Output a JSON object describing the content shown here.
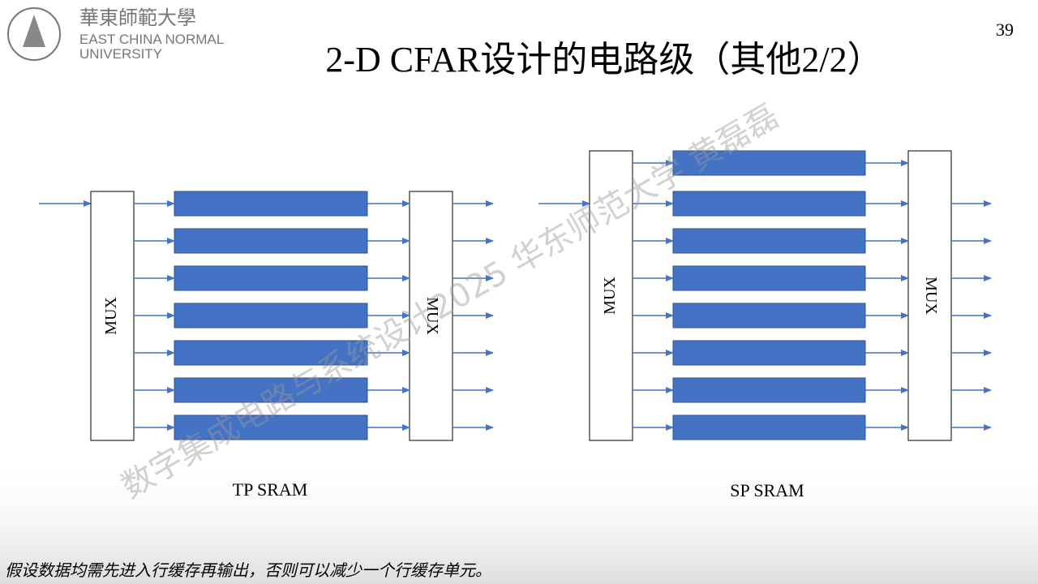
{
  "header": {
    "logo_cn": "華東師範大學",
    "logo_en_1": "EAST CHINA NORMAL",
    "logo_en_2": "UNIVERSITY",
    "page_number": "39",
    "title": "2-D CFAR设计的电路级（其他2/2）"
  },
  "diagrams": [
    {
      "label": "TP SRAM",
      "mux_left": "MUX",
      "mux_right": "MUX"
    },
    {
      "label": "SP SRAM",
      "mux_left": "MUX",
      "mux_right": "MUX"
    }
  ],
  "watermark": "数字集成电路与系统设计2025 华东师范大学 黄磊磊",
  "footnote": "假设数据均需先进入行缓存再输出，否则可以减少一个行缓存单元。"
}
